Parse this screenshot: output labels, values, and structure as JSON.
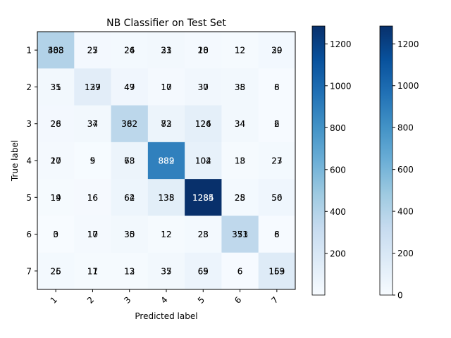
{
  "chart_data": {
    "type": "heatmap",
    "title": "NB Classifier on Test Set",
    "xlabel": "Predicted label",
    "ylabel": "True label",
    "x_categories": [
      "1",
      "2",
      "3",
      "4",
      "5",
      "6",
      "7"
    ],
    "y_categories": [
      "1",
      "2",
      "3",
      "4",
      "5",
      "6",
      "7"
    ],
    "colormap": "Blues",
    "value_range": [
      0,
      1285
    ],
    "matrix_a": [
      [
        403,
        27,
        24,
        31,
        18,
        12,
        30
      ],
      [
        31,
        137,
        47,
        17,
        37,
        35,
        6
      ],
      [
        26,
        34,
        362,
        73,
        124,
        34,
        6
      ],
      [
        17,
        5,
        73,
        889,
        104,
        13,
        23
      ],
      [
        14,
        16,
        62,
        135,
        1285,
        25,
        50
      ],
      [
        3,
        17,
        35,
        12,
        23,
        351,
        6
      ],
      [
        25,
        11,
        13,
        35,
        69,
        6,
        159
      ]
    ],
    "matrix_b": [
      [
        388,
        25,
        26,
        23,
        20,
        12,
        29
      ],
      [
        35,
        129,
        49,
        10,
        30,
        38,
        8
      ],
      [
        28,
        37,
        382,
        82,
        126,
        34,
        2
      ],
      [
        20,
        9,
        68,
        882,
        102,
        18,
        27
      ],
      [
        19,
        16,
        64,
        138,
        1284,
        28,
        56
      ],
      [
        0,
        10,
        30,
        12,
        28,
        373,
        8
      ],
      [
        26,
        17,
        12,
        37,
        65,
        6,
        163
      ]
    ],
    "colorbar_left": {
      "min": 1,
      "max": 1285,
      "ticks": [
        200,
        400,
        600,
        800,
        1000,
        1200
      ]
    },
    "colorbar_right": {
      "min": 0,
      "max": 1285,
      "ticks": [
        0,
        200,
        400,
        600,
        800,
        1000,
        1200
      ]
    }
  }
}
